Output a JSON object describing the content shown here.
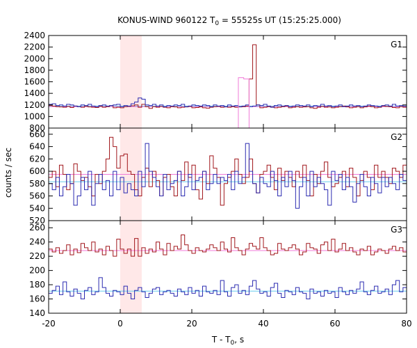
{
  "chart_data": {
    "type": "line",
    "title": {
      "prefix": "KONUS-WIND 960122 T",
      "subscript": "0",
      "suffix": " = 55525s UT (15:25:25.000)"
    },
    "xlabel": {
      "prefix": "T - T",
      "subscript": "0",
      "suffix": ", s"
    },
    "ylabel": "counts / sec",
    "xlim": [
      -20,
      80
    ],
    "xticks": [
      -20,
      0,
      20,
      40,
      60,
      80
    ],
    "xtick_labels": [
      "-20",
      "0",
      "20",
      "40",
      "60",
      "80"
    ],
    "highlight": {
      "x": [
        0,
        6
      ],
      "color": "#ffe8e8"
    },
    "colors": {
      "red": "#a0151a",
      "blue": "#2a2ab0",
      "pink": "#f07ad8",
      "cyan": "#66ccee"
    },
    "panels": [
      {
        "label": "G1",
        "ylim": [
          800,
          2400
        ],
        "yticks": [
          800,
          1000,
          1200,
          1400,
          1600,
          1800,
          2000,
          2200,
          2400
        ],
        "ytick_labels": [
          "800",
          "1000",
          "1200",
          "1400",
          "1600",
          "1800",
          "2000",
          "2200",
          "2400"
        ],
        "series": [
          {
            "color": "red",
            "dx": 1.0,
            "x0": -20,
            "values": [
              1190,
              1180,
              1170,
              1165,
              1160,
              1175,
              1155,
              1180,
              1170,
              1160,
              1175,
              1165,
              1160,
              1155,
              1175,
              1160,
              1170,
              1190,
              1150,
              1160,
              1150,
              1170,
              1175,
              1185,
              1200,
              1160,
              1210,
              1170,
              1140,
              1170,
              1160,
              1175,
              1160,
              1150,
              1170,
              1165,
              1150,
              1160,
              1165,
              1175,
              1150,
              1155,
              1165,
              1150,
              1145,
              1160,
              1170,
              1175,
              1160,
              1165,
              1160,
              1170,
              1160,
              1165,
              1170,
              1180,
              1650,
              2240,
              1200,
              1150,
              1160,
              1170,
              1165,
              1150,
              1160,
              1170,
              1180,
              1150,
              1160,
              1170,
              1160,
              1165,
              1170,
              1150,
              1140,
              1160,
              1175,
              1160,
              1165,
              1150,
              1160,
              1170,
              1180,
              1165,
              1150,
              1160,
              1170,
              1150,
              1165,
              1180,
              1170,
              1150,
              1160,
              1180,
              1175,
              1170,
              1155,
              1150,
              1170,
              1160
            ]
          },
          {
            "color": "blue",
            "dx": 1.0,
            "x0": -20,
            "values": [
              1210,
              1220,
              1190,
              1200,
              1180,
              1210,
              1200,
              1180,
              1170,
              1200,
              1190,
              1210,
              1180,
              1170,
              1190,
              1200,
              1180,
              1190,
              1200,
              1210,
              1170,
              1190,
              1180,
              1220,
              1250,
              1320,
              1300,
              1200,
              1190,
              1210,
              1180,
              1200,
              1170,
              1190,
              1180,
              1200,
              1190,
              1210,
              1170,
              1180,
              1200,
              1190,
              1180,
              1200,
              1190,
              1170,
              1200,
              1180,
              1190,
              1170,
              1200,
              1180,
              1190,
              1170,
              1180,
              1200,
              1170,
              1180,
              1200,
              1190,
              1210,
              1180,
              1160,
              1190,
              1200,
              1180,
              1190,
              1170,
              1180,
              1200,
              1190,
              1180,
              1200,
              1170,
              1190,
              1180,
              1210,
              1180,
              1190,
              1170,
              1180,
              1200,
              1170,
              1180,
              1200,
              1180,
              1190,
              1170,
              1180,
              1200,
              1190,
              1180,
              1170,
              1190,
              1200,
              1180,
              1210,
              1180,
              1190,
              1180
            ]
          },
          {
            "color": "pink",
            "dx": 1.5,
            "x0": 33,
            "values": [
              1670,
              1650
            ]
          }
        ],
        "baselines": [
          {
            "color": "cyan",
            "value": 1180
          },
          {
            "color": "pink",
            "value": 1170
          }
        ]
      },
      {
        "label": "G2",
        "ylim": [
          520,
          670
        ],
        "yticks": [
          520,
          540,
          560,
          580,
          600,
          620,
          640,
          660
        ],
        "ytick_labels": [
          "520",
          "540",
          "560",
          "580",
          "600",
          "620",
          "640",
          "660"
        ],
        "series": [
          {
            "color": "red",
            "dx": 1.0,
            "x0": -20,
            "values": [
              590,
              600,
              575,
              610,
              595,
              570,
              580,
              612,
              600,
              585,
              590,
              575,
              560,
              595,
              580,
              600,
              620,
              655,
              640,
              605,
              625,
              628,
              600,
              595,
              570,
              560,
              590,
              605,
              575,
              600,
              585,
              560,
              590,
              595,
              575,
              560,
              600,
              585,
              615,
              590,
              610,
              570,
              555,
              600,
              580,
              625,
              605,
              590,
              545,
              580,
              590,
              600,
              620,
              595,
              580,
              590,
              620,
              580,
              565,
              595,
              600,
              610,
              590,
              570,
              605,
              585,
              600,
              590,
              575,
              600,
              590,
              610,
              585,
              560,
              595,
              580,
              600,
              615,
              590,
              575,
              580,
              590,
              600,
              575,
              605,
              590,
              560,
              585,
              600,
              590,
              570,
              610,
              590,
              600,
              590,
              580,
              605,
              600,
              590,
              610
            ]
          },
          {
            "color": "blue",
            "dx": 1.0,
            "x0": -20,
            "values": [
              580,
              570,
              590,
              560,
              575,
              595,
              580,
              545,
              560,
              590,
              570,
              600,
              545,
              580,
              595,
              570,
              585,
              560,
              600,
              570,
              590,
              565,
              580,
              570,
              560,
              600,
              575,
              645,
              600,
              590,
              575,
              560,
              595,
              570,
              580,
              585,
              600,
              560,
              575,
              595,
              570,
              585,
              590,
              600,
              570,
              580,
              595,
              580,
              590,
              585,
              595,
              570,
              600,
              580,
              590,
              645,
              600,
              580,
              565,
              590,
              580,
              575,
              600,
              585,
              560,
              590,
              575,
              600,
              585,
              540,
              575,
              590,
              560,
              600,
              575,
              590,
              580,
              570,
              545,
              600,
              585,
              595,
              570,
              590,
              575,
              550,
              580,
              595,
              575,
              560,
              590,
              580,
              565,
              590,
              575,
              590,
              580,
              570,
              595,
              585
            ]
          }
        ],
        "baselines": [
          {
            "color": "pink",
            "value": 595
          },
          {
            "color": "cyan",
            "value": 583
          }
        ]
      },
      {
        "label": "G3",
        "ylim": [
          140,
          270
        ],
        "yticks": [
          140,
          160,
          180,
          200,
          220,
          240,
          260
        ],
        "ytick_labels": [
          "140",
          "160",
          "180",
          "200",
          "220",
          "240",
          "260"
        ],
        "series": [
          {
            "color": "red",
            "dx": 1.0,
            "x0": -20,
            "values": [
              230,
              226,
              232,
              224,
              228,
              236,
              222,
              230,
              225,
              238,
              232,
              228,
              240,
              226,
              230,
              222,
              234,
              228,
              220,
              244,
              230,
              224,
              230,
              220,
              245,
              220,
              232,
              224,
              230,
              226,
              240,
              230,
              222,
              238,
              228,
              234,
              230,
              250,
              236,
              228,
              224,
              232,
              228,
              226,
              230,
              236,
              232,
              228,
              240,
              230,
              226,
              246,
              232,
              228,
              222,
              230,
              238,
              234,
              230,
              246,
              232,
              228,
              222,
              224,
              238,
              230,
              228,
              232,
              236,
              230,
              222,
              226,
              238,
              232,
              230,
              224,
              236,
              240,
              228,
              244,
              226,
              230,
              238,
              228,
              232,
              226,
              222,
              230,
              228,
              234,
              222,
              226,
              230,
              228,
              224,
              230,
              234,
              228,
              232,
              226
            ]
          },
          {
            "color": "blue",
            "dx": 1.0,
            "x0": -20,
            "values": [
              168,
              172,
              178,
              166,
              184,
              170,
              164,
              174,
              168,
              160,
              172,
              176,
              166,
              170,
              190,
              176,
              168,
              164,
              172,
              170,
              166,
              178,
              168,
              160,
              172,
              176,
              170,
              162,
              168,
              174,
              176,
              166,
              170,
              172,
              168,
              164,
              174,
              170,
              166,
              176,
              168,
              172,
              164,
              178,
              170,
              168,
              172,
              166,
              186,
              170,
              164,
              176,
              180,
              168,
              172,
              166,
              178,
              186,
              174,
              168,
              170,
              164,
              176,
              182,
              168,
              162,
              172,
              170,
              166,
              176,
              170,
              168,
              160,
              174,
              168,
              170,
              164,
              172,
              168,
              170,
              162,
              176,
              170,
              166,
              172,
              168,
              174,
              184,
              170,
              166,
              172,
              178,
              168,
              170,
              174,
              166,
              180,
              186,
              170,
              176
            ]
          }
        ],
        "baselines": [
          {
            "color": "pink",
            "value": 228
          },
          {
            "color": "cyan",
            "value": 171
          }
        ]
      }
    ]
  }
}
